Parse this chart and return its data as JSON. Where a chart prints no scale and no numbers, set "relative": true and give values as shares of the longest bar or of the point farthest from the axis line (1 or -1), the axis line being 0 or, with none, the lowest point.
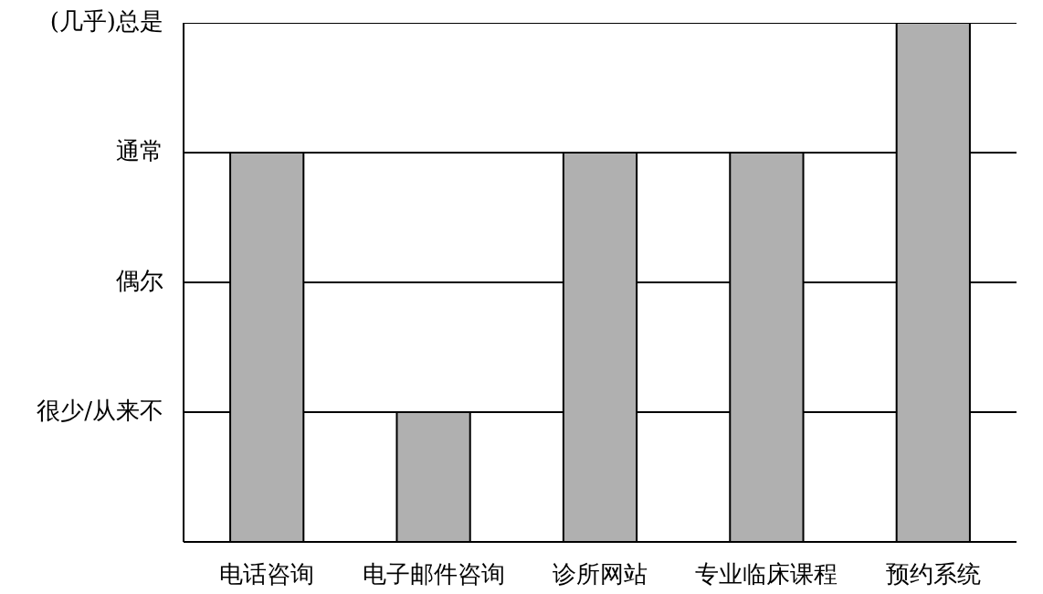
{
  "chart_data": {
    "type": "bar",
    "categories": [
      "电话咨询",
      "电子邮件咨询",
      "诊所网站",
      "专业临床课程",
      "预约系统"
    ],
    "values": [
      0.75,
      0.25,
      0.75,
      0.75,
      1
    ],
    "color": "#b0b0b0",
    "relative": true,
    "ref_lines": [
      {
        "axis": "y",
        "value": 0.25,
        "label": "很少/从来不",
        "color": "#000000"
      },
      {
        "axis": "y",
        "value": 0.5,
        "label": "偶尔",
        "color": "#000000"
      },
      {
        "axis": "y",
        "value": 0.75,
        "label": "通常",
        "color": "#000000"
      },
      {
        "axis": "y",
        "value": 1,
        "label": "(几乎)总是",
        "color": "#000000"
      }
    ]
  }
}
